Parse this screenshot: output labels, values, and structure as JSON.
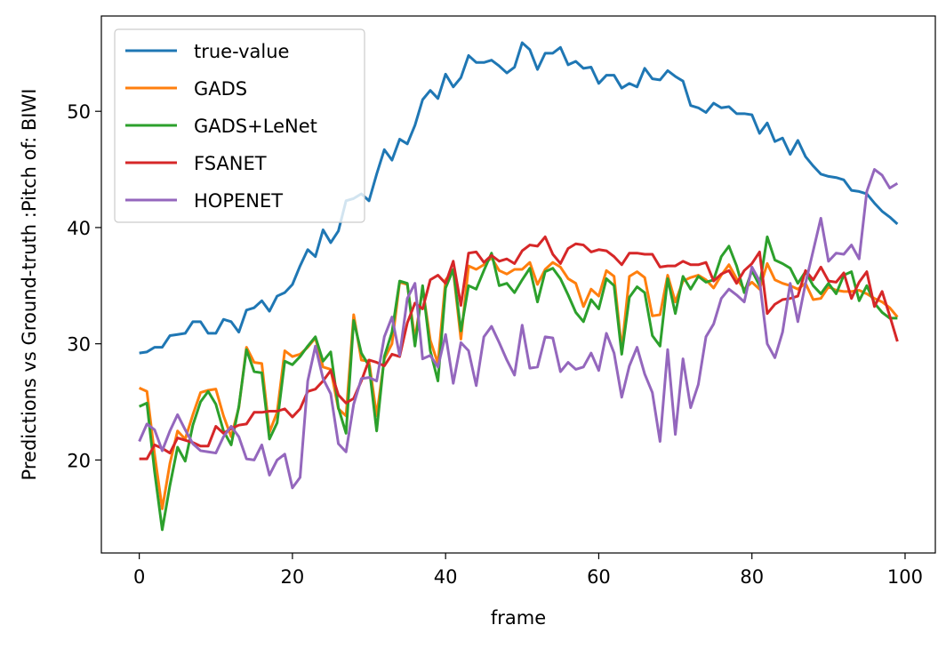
{
  "chart_data": {
    "type": "line",
    "xlabel": "frame",
    "ylabel": "Predictions vs Ground-truth :Pitch of: BIWI",
    "x": [
      0,
      1,
      2,
      3,
      4,
      5,
      6,
      7,
      8,
      9,
      10,
      11,
      12,
      13,
      14,
      15,
      16,
      17,
      18,
      19,
      20,
      21,
      22,
      23,
      24,
      25,
      26,
      27,
      28,
      29,
      30,
      31,
      32,
      33,
      34,
      35,
      36,
      37,
      38,
      39,
      40,
      41,
      42,
      43,
      44,
      45,
      46,
      47,
      48,
      49,
      50,
      51,
      52,
      53,
      54,
      55,
      56,
      57,
      58,
      59,
      60,
      61,
      62,
      63,
      64,
      65,
      66,
      67,
      68,
      69,
      70,
      71,
      72,
      73,
      74,
      75,
      76,
      77,
      78,
      79,
      80,
      81,
      82,
      83,
      84,
      85,
      86,
      87,
      88,
      89,
      90,
      91,
      92,
      93,
      94,
      95,
      96,
      97,
      98,
      99
    ],
    "series": [
      {
        "name": "true-value",
        "color": "#1f77b4",
        "values": [
          29.2,
          29.3,
          29.7,
          29.7,
          30.7,
          30.8,
          30.9,
          31.9,
          31.9,
          30.9,
          30.9,
          32.1,
          31.9,
          31.0,
          32.9,
          33.1,
          33.7,
          32.8,
          34.1,
          34.4,
          35.1,
          36.7,
          38.1,
          37.5,
          39.8,
          38.7,
          39.7,
          42.3,
          42.5,
          42.9,
          42.3,
          44.6,
          46.7,
          45.8,
          47.6,
          47.2,
          48.8,
          51.0,
          51.8,
          51.1,
          53.2,
          52.1,
          52.9,
          54.8,
          54.2,
          54.2,
          54.4,
          53.9,
          53.3,
          53.8,
          55.9,
          55.3,
          53.6,
          55.0,
          55.0,
          55.5,
          54.0,
          54.3,
          53.7,
          53.8,
          52.4,
          53.1,
          53.1,
          52.0,
          52.4,
          52.1,
          53.7,
          52.8,
          52.7,
          53.5,
          53.0,
          52.6,
          50.5,
          50.3,
          49.9,
          50.7,
          50.3,
          50.4,
          49.8,
          49.8,
          49.7,
          48.1,
          49.0,
          47.4,
          47.7,
          46.3,
          47.5,
          46.1,
          45.3,
          44.6,
          44.4,
          44.3,
          44.1,
          43.2,
          43.1,
          42.9,
          42.1,
          41.4,
          40.9,
          40.3
        ]
      },
      {
        "name": "GADS",
        "color": "#ff7f0e",
        "values": [
          26.2,
          25.9,
          20.5,
          15.8,
          19.7,
          22.5,
          21.8,
          23.9,
          25.8,
          26.0,
          26.1,
          23.8,
          22.0,
          24.5,
          29.7,
          28.4,
          28.3,
          22.4,
          24.1,
          29.4,
          28.9,
          29.1,
          29.7,
          30.5,
          28.0,
          27.8,
          24.4,
          23.8,
          32.5,
          28.6,
          28.5,
          23.8,
          28.7,
          30.0,
          35.3,
          35.1,
          30.4,
          34.8,
          30.3,
          28.3,
          35.5,
          36.3,
          30.4,
          36.7,
          36.4,
          36.8,
          37.4,
          36.3,
          36.0,
          36.4,
          36.4,
          37.0,
          35.1,
          36.4,
          37.0,
          36.6,
          35.6,
          35.2,
          33.2,
          34.7,
          34.1,
          36.3,
          35.8,
          29.5,
          35.8,
          36.2,
          35.7,
          32.4,
          32.5,
          35.9,
          33.6,
          35.4,
          35.7,
          35.9,
          35.5,
          34.8,
          35.9,
          36.8,
          35.6,
          34.7,
          35.3,
          34.7,
          36.9,
          35.5,
          35.2,
          35.0,
          34.7,
          35.2,
          33.8,
          33.9,
          34.9,
          34.6,
          34.5,
          34.5,
          34.6,
          34.3,
          33.9,
          33.6,
          33.1,
          32.3
        ]
      },
      {
        "name": "GADS+LeNet",
        "color": "#2ca02c",
        "values": [
          24.6,
          24.9,
          19.0,
          14.0,
          17.8,
          21.1,
          19.9,
          23.0,
          25.0,
          25.9,
          24.8,
          22.5,
          21.3,
          24.6,
          29.5,
          27.6,
          27.5,
          21.8,
          23.2,
          28.5,
          28.2,
          28.9,
          29.8,
          30.6,
          28.5,
          29.3,
          24.5,
          22.3,
          32.0,
          29.2,
          28.1,
          22.5,
          28.9,
          31.0,
          35.4,
          35.2,
          29.8,
          35.0,
          29.4,
          26.8,
          34.8,
          36.4,
          31.1,
          35.0,
          34.7,
          36.3,
          37.8,
          35.0,
          35.2,
          34.4,
          35.5,
          36.5,
          33.6,
          36.2,
          36.5,
          35.6,
          34.2,
          32.7,
          31.9,
          33.8,
          33.0,
          35.6,
          35.0,
          29.1,
          34.0,
          34.9,
          34.4,
          30.7,
          29.8,
          35.6,
          32.6,
          35.8,
          34.7,
          35.8,
          35.3,
          35.5,
          37.5,
          38.4,
          36.7,
          34.4,
          36.3,
          35.0,
          39.2,
          37.2,
          36.9,
          36.5,
          35.2,
          36.2,
          35.0,
          34.3,
          35.2,
          34.3,
          35.9,
          36.2,
          33.7,
          35.0,
          33.5,
          32.7,
          32.2,
          32.2
        ]
      },
      {
        "name": "FSANET",
        "color": "#d62728",
        "values": [
          20.1,
          20.1,
          21.3,
          21.0,
          20.6,
          21.9,
          21.7,
          21.5,
          21.2,
          21.2,
          22.9,
          22.3,
          22.7,
          23.0,
          23.1,
          24.1,
          24.1,
          24.2,
          24.2,
          24.4,
          23.7,
          24.4,
          25.9,
          26.1,
          26.8,
          27.7,
          25.6,
          24.9,
          25.3,
          26.8,
          28.6,
          28.4,
          28.1,
          29.1,
          28.9,
          31.8,
          33.5,
          33.0,
          35.5,
          35.9,
          35.2,
          37.1,
          33.3,
          37.8,
          37.9,
          37.0,
          37.6,
          37.1,
          37.3,
          36.9,
          38.0,
          38.5,
          38.4,
          39.2,
          37.7,
          36.9,
          38.2,
          38.6,
          38.5,
          37.9,
          38.1,
          38.0,
          37.5,
          36.8,
          37.8,
          37.8,
          37.7,
          37.7,
          36.6,
          36.7,
          36.7,
          37.1,
          36.8,
          36.8,
          37.0,
          35.4,
          36.0,
          36.3,
          35.2,
          36.3,
          36.9,
          37.9,
          32.6,
          33.4,
          33.8,
          33.9,
          34.1,
          36.3,
          35.5,
          36.6,
          35.4,
          35.3,
          36.1,
          33.9,
          35.3,
          36.2,
          33.2,
          34.5,
          32.4,
          30.2
        ]
      },
      {
        "name": "HOPENET",
        "color": "#9467bd",
        "values": [
          21.6,
          23.1,
          22.6,
          20.8,
          22.5,
          23.9,
          22.6,
          21.4,
          20.8,
          20.7,
          20.6,
          22.0,
          22.9,
          22.0,
          20.1,
          20.0,
          21.3,
          18.7,
          20.0,
          20.5,
          17.6,
          18.5,
          26.8,
          29.8,
          27.0,
          25.7,
          21.4,
          20.7,
          24.8,
          27.0,
          27.1,
          26.8,
          30.6,
          32.3,
          29.0,
          33.9,
          35.2,
          28.7,
          29.0,
          28.0,
          30.8,
          26.6,
          30.1,
          29.4,
          26.4,
          30.6,
          31.5,
          30.1,
          28.6,
          27.3,
          31.6,
          27.9,
          28.0,
          30.6,
          30.5,
          27.6,
          28.4,
          27.8,
          28.0,
          29.2,
          27.7,
          30.9,
          29.2,
          25.4,
          28.1,
          29.7,
          27.4,
          25.8,
          21.6,
          29.5,
          22.2,
          28.7,
          24.5,
          26.5,
          30.6,
          31.7,
          33.9,
          34.7,
          34.2,
          33.6,
          36.6,
          35.4,
          30.0,
          28.8,
          31.0,
          35.2,
          31.9,
          35.2,
          38.0,
          40.8,
          37.1,
          37.8,
          37.7,
          38.5,
          37.3,
          43.1,
          45.0,
          44.5,
          43.4,
          43.8
        ]
      }
    ],
    "xlim": [
      -4.95,
      103.95
    ],
    "ylim": [
      12.0,
      58.2
    ],
    "xticks": [
      0,
      20,
      40,
      60,
      80,
      100
    ],
    "yticks": [
      20,
      30,
      40,
      50
    ],
    "legend": "upper left"
  }
}
